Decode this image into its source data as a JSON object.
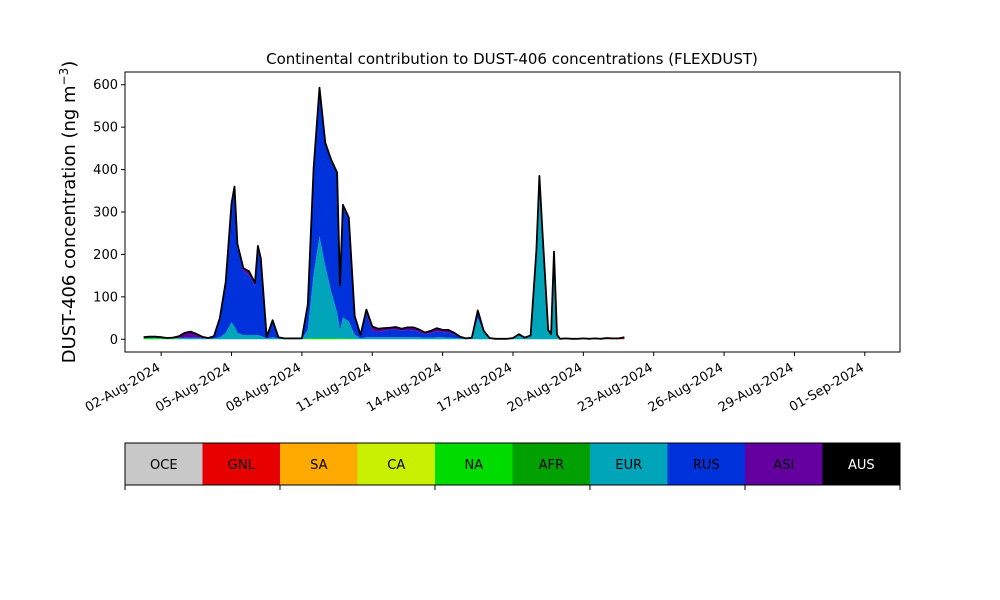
{
  "chart_data": {
    "type": "area",
    "title": "Continental contribution to DUST-406 concentrations (FLEXDUST)",
    "ylabel": "DUST-406 concentration (ng m",
    "ylabel_unit_exp": "−3",
    "ylabel_close": ")",
    "xlabel": "",
    "ylim": [
      -30,
      630
    ],
    "xlim": [
      "2024-07-31T11:00",
      "2024-09-02T12:00"
    ],
    "y_ticks": [
      0,
      100,
      200,
      300,
      400,
      500,
      600
    ],
    "x_ticks": [
      "02-Aug-2024",
      "05-Aug-2024",
      "08-Aug-2024",
      "11-Aug-2024",
      "14-Aug-2024",
      "17-Aug-2024",
      "20-Aug-2024",
      "23-Aug-2024",
      "26-Aug-2024",
      "29-Aug-2024",
      "01-Sep-2024"
    ],
    "x_tick_dates": [
      "2024-08-02",
      "2024-08-05",
      "2024-08-08",
      "2024-08-11",
      "2024-08-14",
      "2024-08-17",
      "2024-08-20",
      "2024-08-23",
      "2024-08-26",
      "2024-08-29",
      "2024-09-01"
    ],
    "legend_position": "below",
    "series": [
      {
        "name": "OCE",
        "color": "#c8c8c8"
      },
      {
        "name": "GNL",
        "color": "#e60000"
      },
      {
        "name": "SA",
        "color": "#ffaa00"
      },
      {
        "name": "CA",
        "color": "#c8f000"
      },
      {
        "name": "NA",
        "color": "#00dc00"
      },
      {
        "name": "AFR",
        "color": "#00a000"
      },
      {
        "name": "EUR",
        "color": "#00a5b9"
      },
      {
        "name": "RUS",
        "color": "#0032dc"
      },
      {
        "name": "ASI",
        "color": "#6400a0"
      },
      {
        "name": "AUS",
        "color": "#000000"
      }
    ],
    "points": [
      {
        "x": "2024-08-01T06:00",
        "v": {
          "NA": 3,
          "EUR": 2
        }
      },
      {
        "x": "2024-08-01T12:00",
        "v": {
          "NA": 3,
          "EUR": 2,
          "ASI": 1
        }
      },
      {
        "x": "2024-08-01T18:00",
        "v": {
          "NA": 2,
          "EUR": 2,
          "ASI": 2
        }
      },
      {
        "x": "2024-08-02T00:00",
        "v": {
          "NA": 2,
          "EUR": 2,
          "ASI": 1
        }
      },
      {
        "x": "2024-08-02T06:00",
        "v": {
          "NA": 1,
          "EUR": 1,
          "ASI": 1
        }
      },
      {
        "x": "2024-08-02T12:00",
        "v": {
          "NA": 1,
          "EUR": 1,
          "ASI": 2
        }
      },
      {
        "x": "2024-08-02T18:00",
        "v": {
          "NA": 1,
          "EUR": 2,
          "ASI": 4
        }
      },
      {
        "x": "2024-08-03T00:00",
        "v": {
          "EUR": 3,
          "RUS": 2,
          "ASI": 10
        }
      },
      {
        "x": "2024-08-03T06:00",
        "v": {
          "EUR": 3,
          "RUS": 2,
          "ASI": 13
        }
      },
      {
        "x": "2024-08-03T12:00",
        "v": {
          "EUR": 3,
          "RUS": 2,
          "ASI": 8
        }
      },
      {
        "x": "2024-08-03T18:00",
        "v": {
          "EUR": 2,
          "RUS": 1,
          "ASI": 3
        }
      },
      {
        "x": "2024-08-04T00:00",
        "v": {
          "EUR": 1,
          "RUS": 1,
          "ASI": 1
        }
      },
      {
        "x": "2024-08-04T06:00",
        "v": {
          "EUR": 2,
          "RUS": 5
        }
      },
      {
        "x": "2024-08-04T12:00",
        "v": {
          "EUR": 5,
          "RUS": 45
        }
      },
      {
        "x": "2024-08-04T18:00",
        "v": {
          "EUR": 15,
          "RUS": 120
        }
      },
      {
        "x": "2024-08-05T00:00",
        "v": {
          "EUR": 40,
          "RUS": 270,
          "ASI": 10
        }
      },
      {
        "x": "2024-08-05T03:00",
        "v": {
          "EUR": 30,
          "RUS": 320,
          "ASI": 10
        }
      },
      {
        "x": "2024-08-05T06:00",
        "v": {
          "EUR": 15,
          "RUS": 200,
          "ASI": 10
        }
      },
      {
        "x": "2024-08-05T12:00",
        "v": {
          "EUR": 10,
          "RUS": 150,
          "ASI": 8
        }
      },
      {
        "x": "2024-08-05T18:00",
        "v": {
          "EUR": 10,
          "RUS": 140,
          "ASI": 10
        }
      },
      {
        "x": "2024-08-06T00:00",
        "v": {
          "EUR": 10,
          "RUS": 115,
          "ASI": 8
        }
      },
      {
        "x": "2024-08-06T03:00",
        "v": {
          "EUR": 10,
          "RUS": 205,
          "ASI": 5
        }
      },
      {
        "x": "2024-08-06T06:00",
        "v": {
          "EUR": 8,
          "RUS": 180,
          "ASI": 3
        }
      },
      {
        "x": "2024-08-06T12:00",
        "v": {
          "EUR": 2,
          "RUS": 3
        }
      },
      {
        "x": "2024-08-06T18:00",
        "v": {
          "EUR": 5,
          "RUS": 40
        }
      },
      {
        "x": "2024-08-07T00:00",
        "v": {
          "EUR": 2,
          "RUS": 3
        }
      },
      {
        "x": "2024-08-07T06:00",
        "v": {
          "EUR": 1,
          "RUS": 1
        }
      },
      {
        "x": "2024-08-07T12:00",
        "v": {
          "EUR": 1,
          "RUS": 1
        }
      },
      {
        "x": "2024-08-07T18:00",
        "v": {
          "EUR": 1,
          "RUS": 1
        }
      },
      {
        "x": "2024-08-08T00:00",
        "v": {
          "EUR": 1,
          "RUS": 1
        }
      },
      {
        "x": "2024-08-08T06:00",
        "v": {
          "NA": 2,
          "EUR": 20,
          "RUS": 60
        }
      },
      {
        "x": "2024-08-08T12:00",
        "v": {
          "NA": 3,
          "EUR": 150,
          "RUS": 250
        }
      },
      {
        "x": "2024-08-08T18:00",
        "v": {
          "NA": 3,
          "EUR": 240,
          "RUS": 350
        }
      },
      {
        "x": "2024-08-09T00:00",
        "v": {
          "NA": 3,
          "EUR": 170,
          "RUS": 290
        }
      },
      {
        "x": "2024-08-09T06:00",
        "v": {
          "NA": 3,
          "EUR": 110,
          "RUS": 310
        }
      },
      {
        "x": "2024-08-09T12:00",
        "v": {
          "NA": 3,
          "EUR": 60,
          "RUS": 330
        }
      },
      {
        "x": "2024-08-09T15:00",
        "v": {
          "NA": 2,
          "EUR": 20,
          "RUS": 100,
          "ASI": 5
        }
      },
      {
        "x": "2024-08-09T18:00",
        "v": {
          "NA": 2,
          "EUR": 50,
          "RUS": 260,
          "ASI": 5
        }
      },
      {
        "x": "2024-08-10T00:00",
        "v": {
          "NA": 2,
          "EUR": 40,
          "RUS": 240,
          "ASI": 5
        }
      },
      {
        "x": "2024-08-10T06:00",
        "v": {
          "NA": 1,
          "EUR": 10,
          "RUS": 40,
          "ASI": 4
        }
      },
      {
        "x": "2024-08-10T12:00",
        "v": {
          "EUR": 2,
          "RUS": 5,
          "ASI": 3
        }
      },
      {
        "x": "2024-08-10T18:00",
        "v": {
          "EUR": 5,
          "RUS": 55,
          "ASI": 10
        }
      },
      {
        "x": "2024-08-11T00:00",
        "v": {
          "EUR": 5,
          "RUS": 15,
          "ASI": 10
        }
      },
      {
        "x": "2024-08-11T06:00",
        "v": {
          "EUR": 5,
          "RUS": 12,
          "ASI": 8
        }
      },
      {
        "x": "2024-08-11T12:00",
        "v": {
          "EUR": 5,
          "RUS": 15,
          "ASI": 6
        }
      },
      {
        "x": "2024-08-11T18:00",
        "v": {
          "EUR": 5,
          "RUS": 17,
          "ASI": 5
        }
      },
      {
        "x": "2024-08-12T00:00",
        "v": {
          "EUR": 5,
          "RUS": 18,
          "ASI": 6
        }
      },
      {
        "x": "2024-08-12T06:00",
        "v": {
          "EUR": 5,
          "RUS": 15,
          "ASI": 5
        }
      },
      {
        "x": "2024-08-12T12:00",
        "v": {
          "EUR": 5,
          "RUS": 17,
          "ASI": 6
        }
      },
      {
        "x": "2024-08-12T18:00",
        "v": {
          "EUR": 5,
          "RUS": 16,
          "ASI": 7
        }
      },
      {
        "x": "2024-08-13T00:00",
        "v": {
          "EUR": 5,
          "RUS": 12,
          "ASI": 6
        }
      },
      {
        "x": "2024-08-13T06:00",
        "v": {
          "EUR": 4,
          "RUS": 8,
          "ASI": 4
        }
      },
      {
        "x": "2024-08-13T12:00",
        "v": {
          "EUR": 4,
          "RUS": 10,
          "ASI": 6
        }
      },
      {
        "x": "2024-08-13T18:00",
        "v": {
          "EUR": 5,
          "RUS": 14,
          "ASI": 7
        }
      },
      {
        "x": "2024-08-14T00:00",
        "v": {
          "EUR": 5,
          "RUS": 12,
          "ASI": 5
        }
      },
      {
        "x": "2024-08-14T06:00",
        "v": {
          "EUR": 4,
          "RUS": 12,
          "ASI": 6
        }
      },
      {
        "x": "2024-08-14T12:00",
        "v": {
          "EUR": 3,
          "RUS": 8,
          "ASI": 4
        }
      },
      {
        "x": "2024-08-14T18:00",
        "v": {
          "EUR": 2,
          "RUS": 3,
          "ASI": 1
        }
      },
      {
        "x": "2024-08-15T00:00",
        "v": {
          "EUR": 1,
          "RUS": 1
        }
      },
      {
        "x": "2024-08-15T06:00",
        "v": {
          "EUR": 2,
          "RUS": 2
        }
      },
      {
        "x": "2024-08-15T12:00",
        "v": {
          "EUR": 50,
          "RUS": 18
        }
      },
      {
        "x": "2024-08-15T18:00",
        "v": {
          "EUR": 15,
          "RUS": 5
        }
      },
      {
        "x": "2024-08-16T00:00",
        "v": {
          "EUR": 2,
          "RUS": 1
        }
      },
      {
        "x": "2024-08-16T06:00",
        "v": {
          "EUR": 1
        }
      },
      {
        "x": "2024-08-16T12:00",
        "v": {
          "EUR": 1
        }
      },
      {
        "x": "2024-08-16T18:00",
        "v": {
          "EUR": 1
        }
      },
      {
        "x": "2024-08-17T00:00",
        "v": {
          "EUR": 2,
          "RUS": 1
        }
      },
      {
        "x": "2024-08-17T06:00",
        "v": {
          "EUR": 10,
          "RUS": 2
        }
      },
      {
        "x": "2024-08-17T12:00",
        "v": {
          "EUR": 3,
          "RUS": 1
        }
      },
      {
        "x": "2024-08-17T18:00",
        "v": {
          "EUR": 8,
          "RUS": 1
        }
      },
      {
        "x": "2024-08-18T00:00",
        "v": {
          "EUR": 200,
          "RUS": 10
        }
      },
      {
        "x": "2024-08-18T03:00",
        "v": {
          "EUR": 370,
          "RUS": 15
        }
      },
      {
        "x": "2024-08-18T06:00",
        "v": {
          "EUR": 250,
          "RUS": 10
        }
      },
      {
        "x": "2024-08-18T12:00",
        "v": {
          "EUR": 20,
          "RUS": 2
        }
      },
      {
        "x": "2024-08-18T15:00",
        "v": {
          "EUR": 10,
          "RUS": 2
        }
      },
      {
        "x": "2024-08-18T18:00",
        "v": {
          "EUR": 205,
          "RUS": 2
        }
      },
      {
        "x": "2024-08-18T21:00",
        "v": {
          "EUR": 10,
          "RUS": 1
        }
      },
      {
        "x": "2024-08-19T00:00",
        "v": {
          "EUR": 1
        }
      },
      {
        "x": "2024-08-19T06:00",
        "v": {
          "EUR": 2
        }
      },
      {
        "x": "2024-08-19T12:00",
        "v": {
          "EUR": 1
        }
      },
      {
        "x": "2024-08-19T18:00",
        "v": {
          "EUR": 1
        }
      },
      {
        "x": "2024-08-20T00:00",
        "v": {
          "EUR": 2
        }
      },
      {
        "x": "2024-08-20T06:00",
        "v": {
          "EUR": 1
        }
      },
      {
        "x": "2024-08-20T12:00",
        "v": {
          "EUR": 2
        }
      },
      {
        "x": "2024-08-20T18:00",
        "v": {
          "EUR": 1
        }
      },
      {
        "x": "2024-08-21T00:00",
        "v": {
          "GNL": 1,
          "EUR": 2
        }
      },
      {
        "x": "2024-08-21T06:00",
        "v": {
          "GNL": 1,
          "EUR": 1
        }
      },
      {
        "x": "2024-08-21T12:00",
        "v": {
          "GNL": 1,
          "EUR": 1
        }
      },
      {
        "x": "2024-08-21T18:00",
        "v": {
          "GNL": 2,
          "EUR": 3
        }
      }
    ]
  }
}
